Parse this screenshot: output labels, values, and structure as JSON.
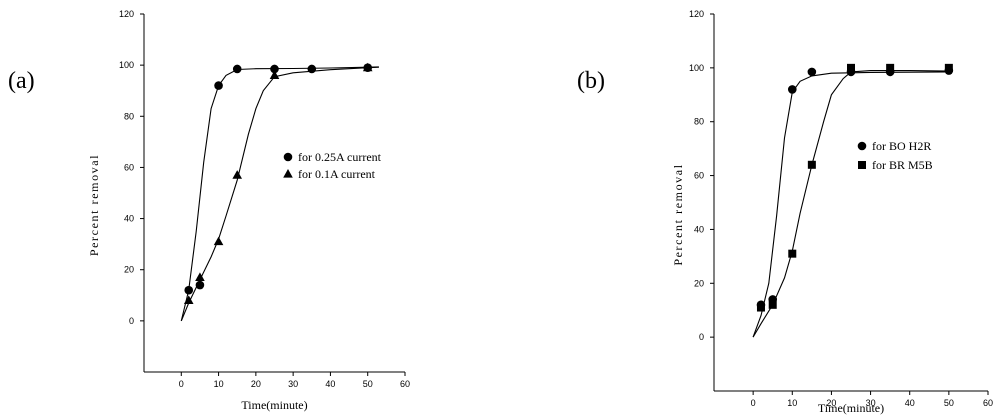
{
  "chart_data": [
    {
      "type": "scatter",
      "panel_label": "(a)",
      "title": "",
      "xlabel": "Time(minute)",
      "ylabel": "Percent removal",
      "xlim": [
        -10,
        60
      ],
      "ylim": [
        -20,
        120
      ],
      "xticks": [
        0,
        10,
        20,
        30,
        40,
        50,
        60
      ],
      "yticks": [
        0,
        20,
        40,
        60,
        80,
        100,
        120
      ],
      "grid": false,
      "legend": {
        "position": "center-right"
      },
      "series": [
        {
          "name": "for 0.25A current",
          "marker": "circle",
          "x": [
            2,
            5,
            10,
            15,
            25,
            35,
            50
          ],
          "y": [
            12,
            14,
            92,
            98.5,
            98.5,
            98.5,
            99
          ],
          "fit": [
            [
              0,
              0
            ],
            [
              2,
              12
            ],
            [
              4,
              35
            ],
            [
              6,
              62
            ],
            [
              8,
              83
            ],
            [
              10,
              92
            ],
            [
              12,
              96
            ],
            [
              15,
              98.3
            ],
            [
              20,
              98.6
            ],
            [
              30,
              98.7
            ],
            [
              40,
              98.9
            ],
            [
              50,
              99.2
            ],
            [
              53,
              99.3
            ]
          ]
        },
        {
          "name": "for 0.1A current",
          "marker": "triangle",
          "x": [
            2,
            5,
            10,
            15,
            25,
            50
          ],
          "y": [
            8,
            17,
            31,
            57,
            96,
            99
          ],
          "fit": [
            [
              0,
              0
            ],
            [
              2,
              7
            ],
            [
              5,
              16
            ],
            [
              8,
              25
            ],
            [
              10,
              32
            ],
            [
              12,
              41
            ],
            [
              15,
              55
            ],
            [
              18,
              73
            ],
            [
              20,
              83
            ],
            [
              22,
              90
            ],
            [
              25,
              95.5
            ],
            [
              30,
              97
            ],
            [
              40,
              98.2
            ],
            [
              50,
              99
            ],
            [
              53,
              99.2
            ]
          ]
        }
      ]
    },
    {
      "type": "scatter",
      "panel_label": "(b)",
      "title": "",
      "xlabel": "Time(minute)",
      "ylabel": "Percent removal",
      "xlim": [
        -10,
        60
      ],
      "ylim": [
        -20,
        120
      ],
      "xticks": [
        0,
        10,
        20,
        30,
        40,
        50,
        60
      ],
      "yticks": [
        0,
        20,
        40,
        60,
        80,
        100,
        120
      ],
      "grid": false,
      "legend": {
        "position": "center-right"
      },
      "series": [
        {
          "name": "for BO H2R",
          "marker": "circle",
          "x": [
            2,
            5,
            10,
            15,
            25,
            35,
            50
          ],
          "y": [
            12,
            14,
            92,
            98.5,
            98.5,
            98.5,
            99
          ],
          "fit": [
            [
              0,
              0
            ],
            [
              2,
              8
            ],
            [
              4,
              20
            ],
            [
              6,
              45
            ],
            [
              8,
              74
            ],
            [
              10,
              91
            ],
            [
              12,
              95
            ],
            [
              15,
              97
            ],
            [
              20,
              98
            ],
            [
              30,
              98.3
            ],
            [
              40,
              98.4
            ],
            [
              50,
              98.5
            ]
          ]
        },
        {
          "name": "for BR M5B",
          "marker": "square",
          "x": [
            2,
            5,
            10,
            15,
            25,
            35,
            50
          ],
          "y": [
            11,
            12,
            31,
            64,
            100,
            100,
            100
          ],
          "fit": [
            [
              0,
              0
            ],
            [
              2,
              5
            ],
            [
              5,
              12
            ],
            [
              8,
              22
            ],
            [
              10,
              32
            ],
            [
              12,
              46
            ],
            [
              15,
              64
            ],
            [
              18,
              80
            ],
            [
              20,
              90
            ],
            [
              23,
              96
            ],
            [
              25,
              98.5
            ],
            [
              30,
              99
            ],
            [
              40,
              99
            ],
            [
              50,
              98.8
            ]
          ]
        }
      ]
    }
  ]
}
